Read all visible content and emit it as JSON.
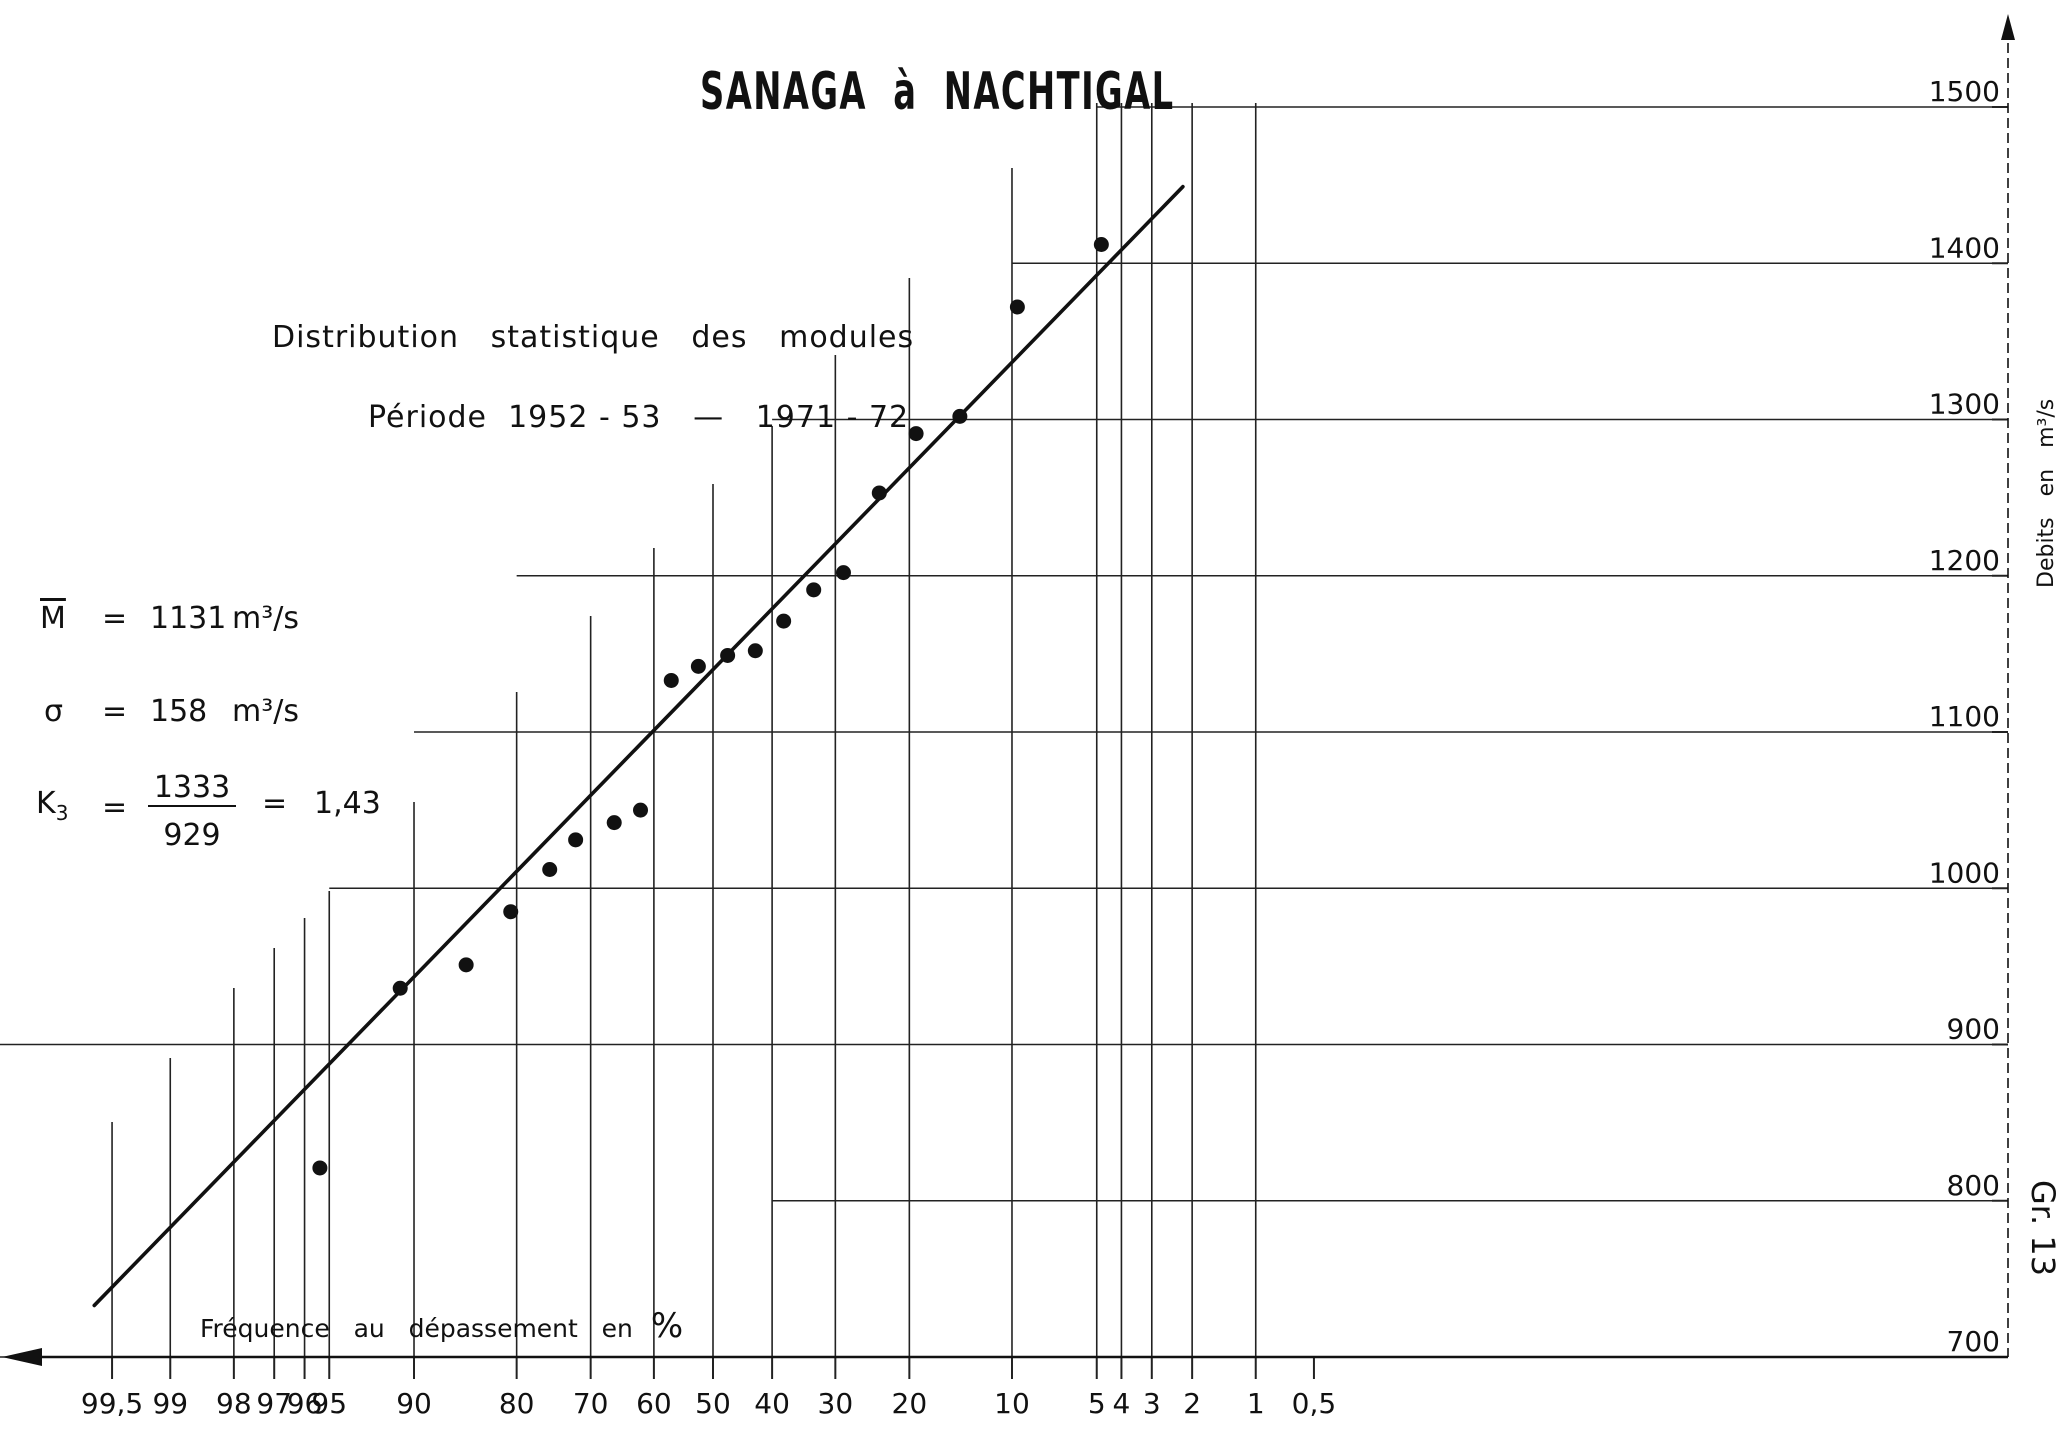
{
  "chart_data": {
    "type": "scatter",
    "title": "SANAGA  à  NACHTIGAL",
    "subtitle_line1": "Distribution   statistique   des   modules",
    "subtitle_line2": "Période  1952 - 53   —   1971 - 72",
    "xlabel_text": "Fréquence   au   dépassement   en",
    "xlabel_unit": "%",
    "ylabel": "Debits   en   m³/s",
    "figure_ref": "Gr. 13",
    "x_scale": "normal-probability (reversed)",
    "x_ticks": [
      "99,5",
      "99",
      "98",
      "97",
      "96",
      "95",
      "90",
      "80",
      "70",
      "60",
      "50",
      "40",
      "30",
      "20",
      "10",
      "5",
      "4",
      "3",
      "2",
      "1",
      "0,5"
    ],
    "x_tick_values": [
      99.5,
      99,
      98,
      97,
      96,
      95,
      90,
      80,
      70,
      60,
      50,
      40,
      30,
      20,
      10,
      5,
      4,
      3,
      2,
      1,
      0.5
    ],
    "y_ticks": [
      "700",
      "800",
      "900",
      "1000",
      "1100",
      "1200",
      "1300",
      "1400",
      "1500"
    ],
    "y_tick_values": [
      700,
      800,
      900,
      1000,
      1100,
      1200,
      1300,
      1400,
      1500
    ],
    "ylim": [
      690,
      1560
    ],
    "stats": {
      "mean_label": "M",
      "mean_value": "1131",
      "mean_unit": "m³/s",
      "sigma_label": "σ",
      "sigma_value": "158",
      "sigma_unit": "m³/s",
      "k3_label": "K",
      "k3_sub": "3",
      "k3_num": "1333",
      "k3_den": "929",
      "k3_value": "1,43",
      "eq": "="
    },
    "points": [
      {
        "x": 95.4,
        "y": 821
      },
      {
        "x": 91.0,
        "y": 936
      },
      {
        "x": 85.5,
        "y": 951
      },
      {
        "x": 80.7,
        "y": 985
      },
      {
        "x": 75.8,
        "y": 1012
      },
      {
        "x": 72.2,
        "y": 1031
      },
      {
        "x": 66.4,
        "y": 1042
      },
      {
        "x": 62.2,
        "y": 1050
      },
      {
        "x": 57.1,
        "y": 1133
      },
      {
        "x": 52.5,
        "y": 1142
      },
      {
        "x": 47.5,
        "y": 1149
      },
      {
        "x": 42.8,
        "y": 1152
      },
      {
        "x": 38.1,
        "y": 1171
      },
      {
        "x": 33.3,
        "y": 1191
      },
      {
        "x": 28.8,
        "y": 1202
      },
      {
        "x": 23.8,
        "y": 1253
      },
      {
        "x": 19.2,
        "y": 1291
      },
      {
        "x": 14.5,
        "y": 1302
      },
      {
        "x": 9.6,
        "y": 1372
      },
      {
        "x": 4.8,
        "y": 1412
      }
    ],
    "fit_line": [
      {
        "x": 99.6,
        "y": 733
      },
      {
        "x": 2.2,
        "y": 1449
      }
    ],
    "grid": true
  }
}
